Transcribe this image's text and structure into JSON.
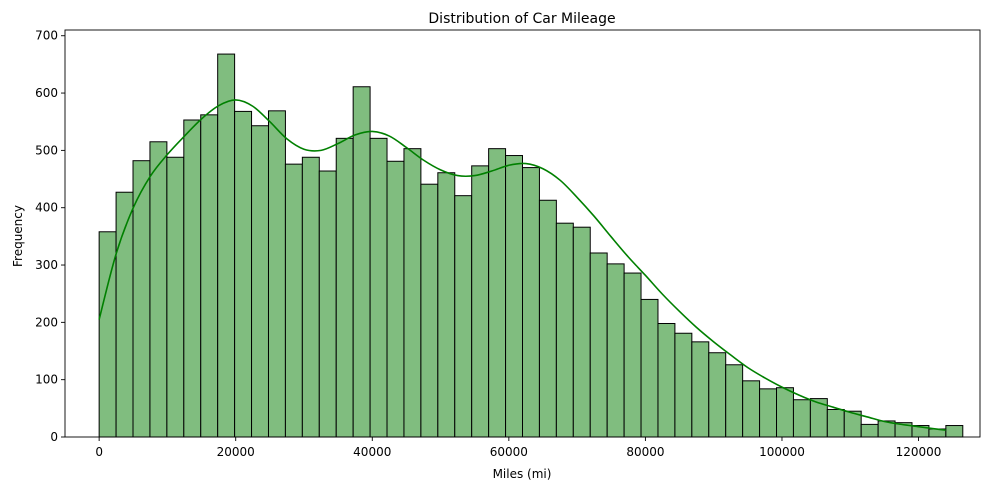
{
  "chart_data": {
    "type": "histogram",
    "title": "Distribution of Car Mileage",
    "xlabel": "Miles (mi)",
    "ylabel": "Frequency",
    "xlim": [
      -5000,
      129000
    ],
    "ylim": [
      0,
      710
    ],
    "xticks": [
      0,
      20000,
      40000,
      60000,
      80000,
      100000,
      120000
    ],
    "yticks": [
      0,
      100,
      200,
      300,
      400,
      500,
      600,
      700
    ],
    "bin_start": 0,
    "bin_width": 2480,
    "counts": [
      358,
      427,
      482,
      515,
      488,
      553,
      562,
      668,
      568,
      543,
      569,
      476,
      488,
      464,
      521,
      611,
      521,
      481,
      503,
      441,
      461,
      421,
      473,
      503,
      491,
      470,
      413,
      373,
      366,
      321,
      302,
      286,
      240,
      198,
      181,
      166,
      147,
      126,
      98,
      84,
      86,
      65,
      67,
      48,
      45,
      22,
      28,
      25,
      20,
      14,
      20
    ],
    "kde": {
      "x": [
        0,
        2500,
        5000,
        7500,
        10000,
        12500,
        15000,
        17500,
        20000,
        22500,
        25000,
        27500,
        30000,
        32500,
        35000,
        37500,
        40000,
        42500,
        45000,
        47500,
        50000,
        52500,
        55000,
        57500,
        60000,
        62500,
        65000,
        67500,
        70000,
        72500,
        75000,
        77500,
        80000,
        82500,
        85000,
        87500,
        90000,
        92500,
        95000,
        97500,
        100000,
        102500,
        105000,
        107500,
        110000,
        112500,
        115000,
        117500,
        120000,
        122500,
        124000
      ],
      "y": [
        205,
        320,
        400,
        455,
        493,
        525,
        555,
        578,
        588,
        577,
        550,
        520,
        502,
        500,
        512,
        527,
        533,
        525,
        505,
        483,
        466,
        456,
        456,
        464,
        474,
        477,
        468,
        448,
        418,
        385,
        349,
        314,
        282,
        249,
        219,
        191,
        166,
        143,
        121,
        103,
        87,
        73,
        61,
        52,
        43,
        35,
        27,
        22,
        18,
        14,
        12
      ]
    },
    "bar_fill": "#80bd7f",
    "bar_edge": "#000000",
    "kde_color": "#008000",
    "grid": false,
    "legend": false
  }
}
